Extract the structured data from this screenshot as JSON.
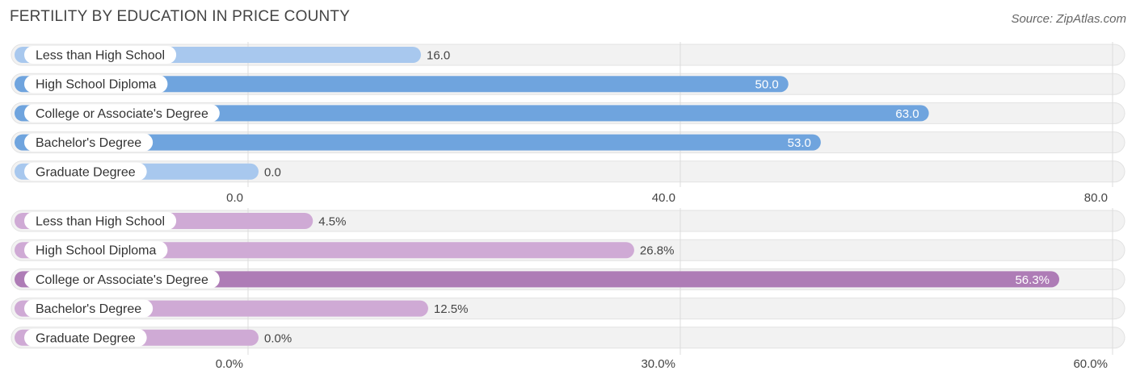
{
  "title": "FERTILITY BY EDUCATION IN PRICE COUNTY",
  "source": "Source: ZipAtlas.com",
  "chart_data": [
    {
      "type": "bar",
      "orientation": "horizontal",
      "categories": [
        "Less than High School",
        "High School Diploma",
        "College or Associate's Degree",
        "Bachelor's Degree",
        "Graduate Degree"
      ],
      "values": [
        16.0,
        50.0,
        63.0,
        53.0,
        0.0
      ],
      "value_labels": [
        "16.0",
        "50.0",
        "63.0",
        "53.0",
        "0.0"
      ],
      "xlim": [
        0,
        80
      ],
      "ticks": [
        0,
        40,
        80
      ],
      "tick_labels": [
        "0.0",
        "40.0",
        "80.0"
      ],
      "grid": true,
      "color_strong": "#6fa4de",
      "color_light": "#a8c8ee"
    },
    {
      "type": "bar",
      "orientation": "horizontal",
      "categories": [
        "Less than High School",
        "High School Diploma",
        "College or Associate's Degree",
        "Bachelor's Degree",
        "Graduate Degree"
      ],
      "values": [
        4.5,
        26.8,
        56.3,
        12.5,
        0.0
      ],
      "value_labels": [
        "4.5%",
        "26.8%",
        "56.3%",
        "12.5%",
        "0.0%"
      ],
      "xlim": [
        0,
        60
      ],
      "ticks": [
        0,
        30,
        60
      ],
      "tick_labels": [
        "0.0%",
        "30.0%",
        "60.0%"
      ],
      "grid": true,
      "color_strong": "#ae7cb6",
      "color_light": "#cfaad5"
    }
  ]
}
